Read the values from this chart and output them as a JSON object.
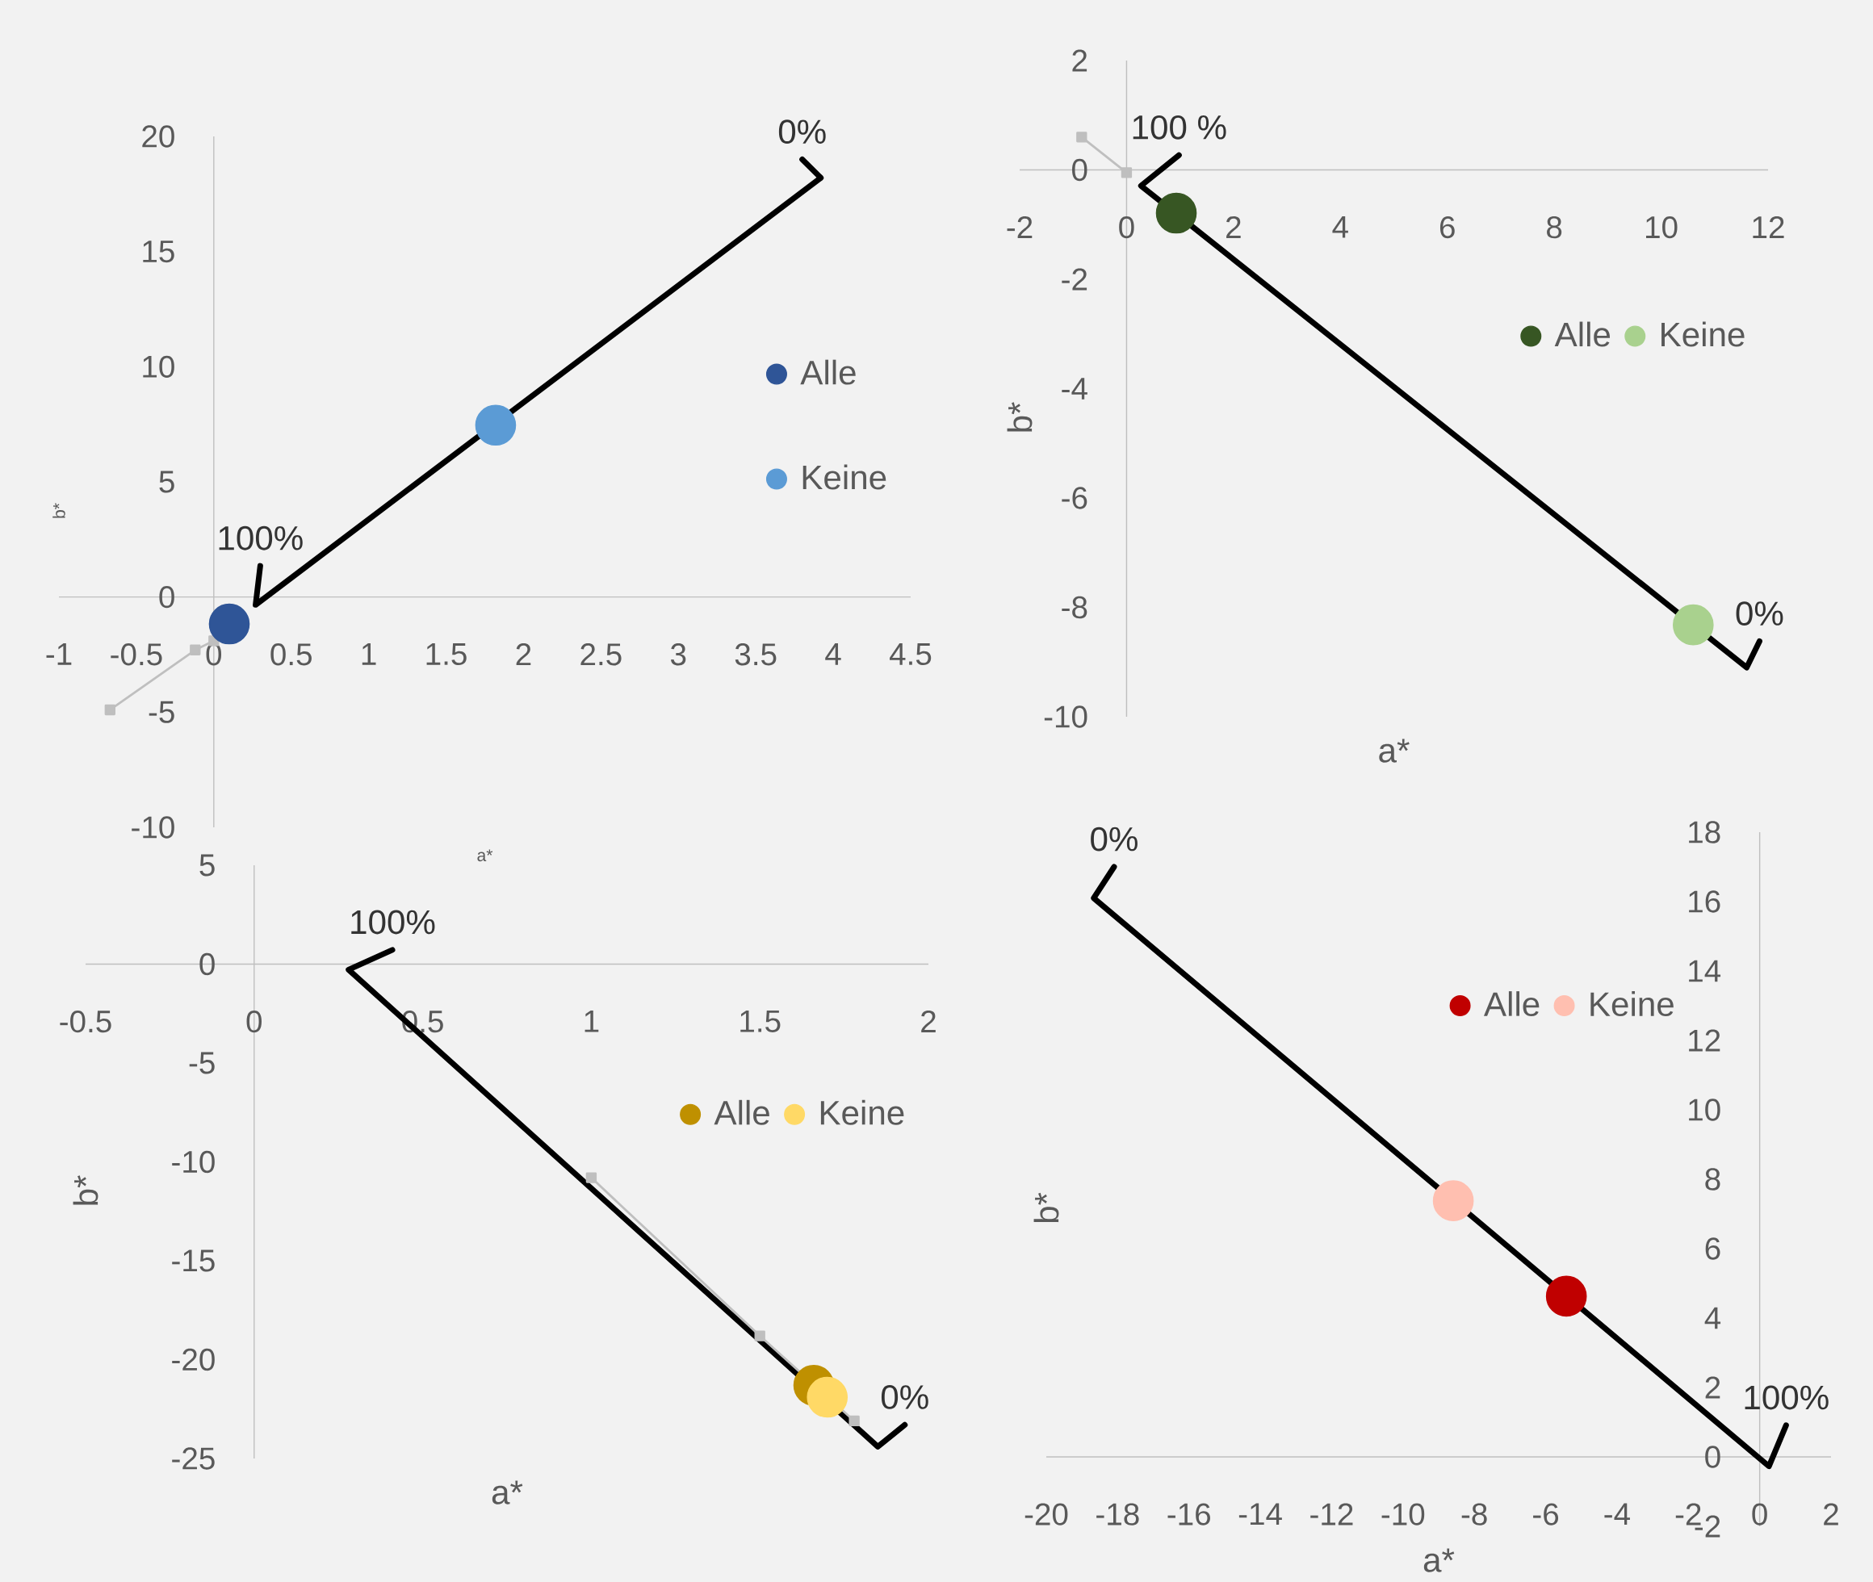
{
  "chart_data": [
    {
      "type": "scatter",
      "xlabel": "a*",
      "ylabel": "b*",
      "xlim": [
        -1,
        4.5
      ],
      "ylim": [
        -10,
        20
      ],
      "xticks": [
        -1,
        -0.5,
        0,
        0.5,
        1,
        1.5,
        2,
        2.5,
        3,
        3.5,
        4,
        4.5
      ],
      "yticks": [
        -10,
        -5,
        0,
        5,
        10,
        15,
        20
      ],
      "legend": "right",
      "series": [
        {
          "name": "Alle",
          "color": "#2f5597",
          "marker": "circle",
          "x": [
            0.1
          ],
          "values": [
            -1.17
          ]
        },
        {
          "name": "Keine",
          "color": "#5b9bd5",
          "marker": "circle",
          "x": [
            1.82
          ],
          "values": [
            7.46
          ]
        },
        {
          "type": "line",
          "color": "#000000",
          "marker": "none",
          "x": [
            0.3,
            0.27,
            3.92,
            3.8
          ],
          "values": [
            1.35,
            -0.34,
            18.2,
            19.0
          ]
        },
        {
          "type": "line",
          "color": "#bfbfbf",
          "marker": "square",
          "x": [
            -0.67,
            -0.12,
            0.0
          ],
          "values": [
            -4.9,
            -2.3,
            -1.9
          ]
        }
      ],
      "annotations": [
        {
          "text": "100%",
          "x": 0.3,
          "y": 1.35
        },
        {
          "text": "0%",
          "x": 3.8,
          "y": 19.0
        }
      ]
    },
    {
      "type": "scatter",
      "xlabel": "a*",
      "ylabel": "b*",
      "xlim": [
        -2,
        12
      ],
      "ylim": [
        -10,
        2
      ],
      "xticks": [
        -2,
        0,
        2,
        4,
        6,
        8,
        10,
        12
      ],
      "yticks": [
        -10,
        -8,
        -6,
        -4,
        -2,
        0,
        2
      ],
      "legend": "right",
      "series": [
        {
          "name": "Alle",
          "color": "#375623",
          "marker": "circle",
          "x": [
            0.93
          ],
          "values": [
            -0.79
          ]
        },
        {
          "name": "Keine",
          "color": "#a9d18e",
          "marker": "circle",
          "x": [
            10.6
          ],
          "values": [
            -8.32
          ]
        },
        {
          "type": "line",
          "color": "#000000",
          "marker": "none",
          "x": [
            0.98,
            0.27,
            11.6,
            11.84
          ],
          "values": [
            0.27,
            -0.29,
            -9.1,
            -8.62
          ]
        },
        {
          "type": "line",
          "color": "#bfbfbf",
          "marker": "square",
          "x": [
            -0.84,
            0.0
          ],
          "values": [
            0.6,
            -0.05
          ]
        }
      ],
      "annotations": [
        {
          "text": "100 %",
          "x": 0.98,
          "y": 0.27
        },
        {
          "text": "0%",
          "x": 11.84,
          "y": -8.62
        }
      ]
    },
    {
      "type": "scatter",
      "xlabel": "a*",
      "ylabel": "b*",
      "xlim": [
        -0.5,
        2
      ],
      "ylim": [
        -25,
        5
      ],
      "xticks": [
        -0.5,
        0,
        0.5,
        1,
        1.5,
        2
      ],
      "yticks": [
        -25,
        -20,
        -15,
        -10,
        -5,
        0,
        5
      ],
      "legend": "right",
      "series": [
        {
          "name": "Alle",
          "color": "#bf9000",
          "marker": "circle",
          "x": [
            1.66
          ],
          "values": [
            -21.3
          ]
        },
        {
          "name": "Keine",
          "color": "#ffd966",
          "marker": "circle",
          "x": [
            1.7
          ],
          "values": [
            -21.9
          ]
        },
        {
          "type": "line",
          "color": "#000000",
          "marker": "none",
          "x": [
            0.41,
            0.28,
            1.85,
            1.93
          ],
          "values": [
            0.72,
            -0.28,
            -24.4,
            -23.3
          ]
        },
        {
          "type": "line",
          "color": "#bfbfbf",
          "marker": "square",
          "x": [
            1.0,
            1.5,
            1.78
          ],
          "values": [
            -10.8,
            -18.8,
            -23.1
          ]
        }
      ],
      "annotations": [
        {
          "text": "100%",
          "x": 0.41,
          "y": 0.72
        },
        {
          "text": "0%",
          "x": 1.93,
          "y": -23.3
        }
      ]
    },
    {
      "type": "scatter",
      "xlabel": "a*",
      "ylabel": "b*",
      "xlim": [
        -20,
        2
      ],
      "ylim": [
        -2,
        18
      ],
      "xticks": [
        -20,
        -18,
        -16,
        -14,
        -12,
        -10,
        -8,
        -6,
        -4,
        -2,
        0,
        2
      ],
      "yticks": [
        -2,
        0,
        2,
        4,
        6,
        8,
        10,
        12,
        14,
        16,
        18
      ],
      "legend": "top right",
      "series": [
        {
          "name": "Alle",
          "color": "#c00000",
          "marker": "circle",
          "x": [
            -5.42
          ],
          "values": [
            4.63
          ]
        },
        {
          "name": "Keine",
          "color": "#ffbfb0",
          "marker": "circle",
          "x": [
            -8.59
          ],
          "values": [
            7.38
          ]
        },
        {
          "type": "line",
          "color": "#000000",
          "marker": "none",
          "x": [
            0.74,
            0.26,
            -18.67,
            -18.1
          ],
          "values": [
            0.91,
            -0.27,
            16.1,
            17.0
          ]
        }
      ],
      "annotations": [
        {
          "text": "100%",
          "x": 0.74,
          "y": 0.91
        },
        {
          "text": "0%",
          "x": -18.1,
          "y": 17.0
        }
      ]
    }
  ]
}
